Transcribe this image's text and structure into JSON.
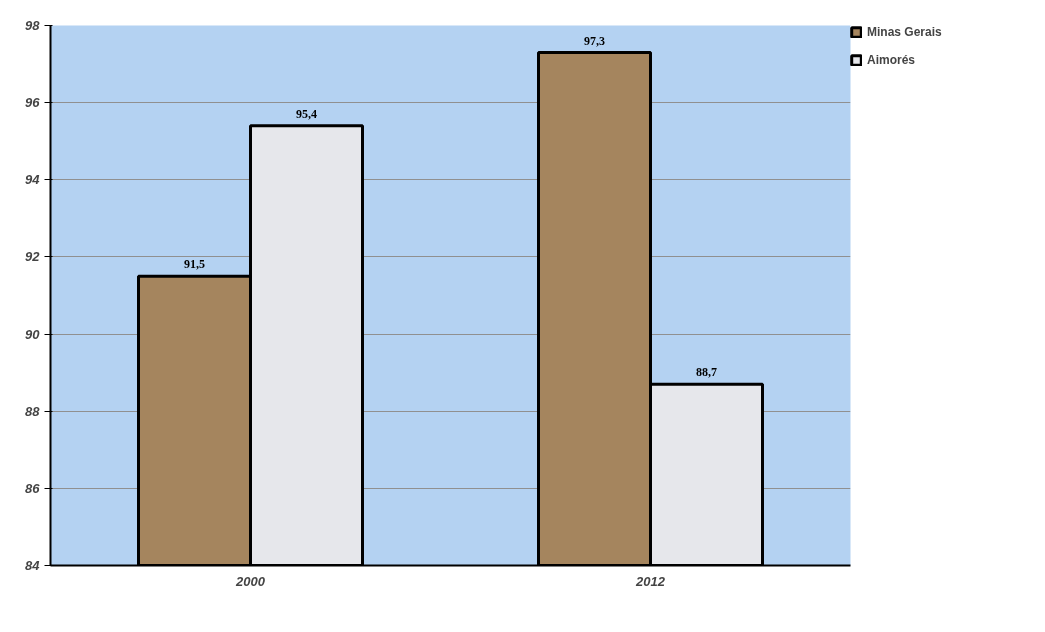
{
  "chart_data": {
    "type": "bar",
    "categories": [
      "2000",
      "2012"
    ],
    "series": [
      {
        "name": "Minas Gerais",
        "color": "#a5855e",
        "values": [
          91.5,
          97.3
        ],
        "value_labels": [
          "91,5",
          "97,3"
        ]
      },
      {
        "name": "Aimorés",
        "color": "#e6e7eb",
        "values": [
          95.4,
          88.7
        ],
        "value_labels": [
          "95,4",
          "88,7"
        ]
      }
    ],
    "ylim": [
      84,
      98
    ],
    "yticks": [
      84,
      86,
      88,
      90,
      92,
      94,
      96,
      98
    ],
    "grid": "y",
    "legend": "right"
  }
}
